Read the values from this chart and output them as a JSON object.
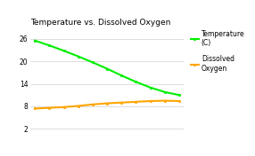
{
  "title": "Temperature vs. Dissolved Oxygen",
  "x_values": [
    0,
    1,
    2,
    3,
    4,
    5,
    6,
    7,
    8,
    9,
    10
  ],
  "temperature": [
    25.5,
    24.2,
    22.8,
    21.3,
    19.7,
    18.0,
    16.2,
    14.5,
    13.0,
    11.8,
    11.0
  ],
  "dissolved_oxygen": [
    7.4,
    7.6,
    7.8,
    8.1,
    8.5,
    8.8,
    9.0,
    9.2,
    9.4,
    9.5,
    9.4
  ],
  "temp_color": "#00ee00",
  "do_color": "#ffa500",
  "temp_label": "Temperature\n(C)",
  "do_label": "Dissolved\nOxygen",
  "yticks": [
    2,
    8,
    14,
    20,
    26
  ],
  "ylim": [
    1,
    28
  ],
  "xlim": [
    -0.3,
    10.3
  ],
  "bg_color": "#ffffff",
  "grid_color": "#d0d0d0",
  "title_fontsize": 6.5,
  "legend_fontsize": 5.5,
  "tick_fontsize": 5.5,
  "linewidth": 1.5,
  "markersize": 2.5
}
